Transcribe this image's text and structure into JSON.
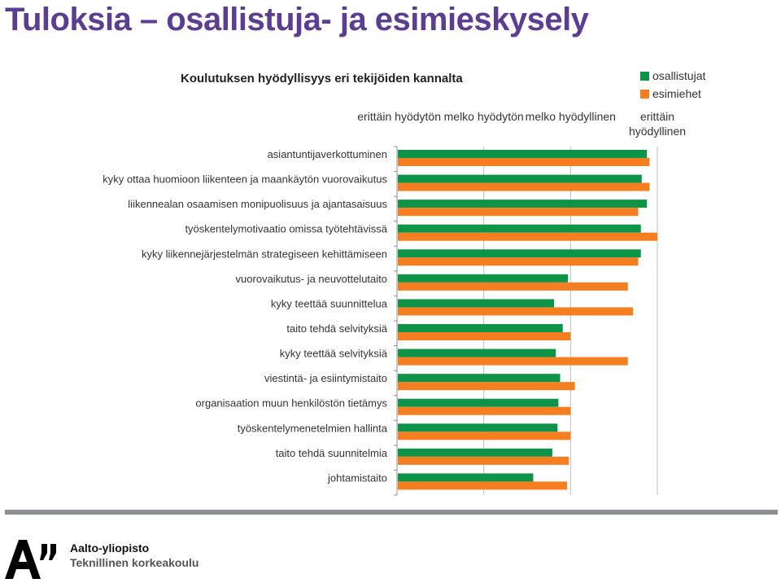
{
  "page": {
    "title": "Tuloksia – osallistuja- ja esimieskysely"
  },
  "chart_data": {
    "type": "bar",
    "orientation": "horizontal",
    "title": "Koulutuksen hyödyllisyys eri tekijöiden kannalta",
    "xlim": [
      1,
      4
    ],
    "scale_labels": [
      "erittäin hyödytön",
      "melko hyödytön",
      "melko hyödyllinen",
      "erittäin hyödyllinen"
    ],
    "legend_position": "top-right",
    "grid": true,
    "categories": [
      "asiantuntijaverkottuminen",
      "kyky ottaa huomioon liikenteen ja maankäytön vuorovaikutus",
      "liikennealan osaamisen monipuolisuus ja ajantasaisuus",
      "työskentelymotivaatio omissa työtehtävissä",
      "kyky liikennejärjestelmän strategiseen kehittämiseen",
      "vuorovaikutus- ja neuvottelutaito",
      "kyky teettää suunnittelua",
      "taito tehdä selvityksiä",
      "kyky teettää selvityksiä",
      "viestintä- ja esiintymistaito",
      "organisaation muun henkilöstön tietämys",
      "työskentelymenetelmien hallinta",
      "taito tehdä suunnitelmia",
      "johtamistaito"
    ],
    "series": [
      {
        "name": "osallistujat",
        "color": "#0e9448",
        "values": [
          3.88,
          3.82,
          3.88,
          3.81,
          3.81,
          2.97,
          2.81,
          2.91,
          2.83,
          2.88,
          2.86,
          2.85,
          2.79,
          2.57
        ]
      },
      {
        "name": "esimiehet",
        "color": "#f47e20",
        "values": [
          3.91,
          3.91,
          3.78,
          4.0,
          3.78,
          3.66,
          3.72,
          3.0,
          3.66,
          3.05,
          3.0,
          3.0,
          2.98,
          2.96
        ]
      }
    ]
  },
  "logo": {
    "mark": "A",
    "name": "Aalto-yliopisto",
    "school": "Teknillinen korkeakoulu"
  }
}
